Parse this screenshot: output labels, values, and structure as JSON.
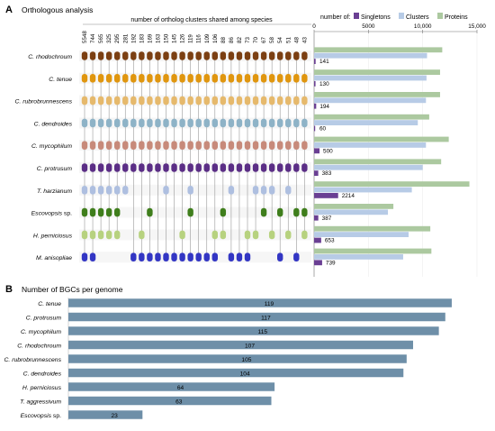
{
  "chart_data": [
    {
      "type": "matrix",
      "panel_label": "A",
      "title": "Orthologous analysis",
      "xlabel": "number of ortholog clusters shared among species",
      "species": [
        {
          "name": "C. rhodochroum",
          "italic": true,
          "color": "#7b3f12"
        },
        {
          "name": "C. tenue",
          "italic": true,
          "color": "#e0960f"
        },
        {
          "name": "C. rubrobrunnescens",
          "italic": true,
          "color": "#e6b96c"
        },
        {
          "name": "C. dendroides",
          "italic": true,
          "color": "#8eb3c7"
        },
        {
          "name": "C. mycophilum",
          "italic": true,
          "color": "#c78a7a"
        },
        {
          "name": "C. protrusum",
          "italic": true,
          "color": "#5b2e86"
        },
        {
          "name": "T. harzianum",
          "italic": true,
          "color": "#aebfe0"
        },
        {
          "name": "Escovopsis",
          "suffix": " sp.",
          "italic": true,
          "color": "#3f7e1c"
        },
        {
          "name": "H. perniciosus",
          "italic": true,
          "color": "#b7d27f"
        },
        {
          "name": "M. anisopliae",
          "italic": true,
          "color": "#3336c4"
        }
      ],
      "columns": [
        {
          "count": "5548",
          "members": [
            0,
            1,
            2,
            3,
            4,
            5,
            6,
            7,
            8,
            9
          ]
        },
        {
          "count": "744",
          "members": [
            0,
            1,
            2,
            3,
            4,
            5,
            6,
            7,
            8,
            9
          ]
        },
        {
          "count": "565",
          "members": [
            0,
            1,
            2,
            3,
            4,
            5,
            6,
            7,
            8
          ]
        },
        {
          "count": "325",
          "members": [
            0,
            1,
            2,
            3,
            4,
            5,
            6,
            7,
            8
          ]
        },
        {
          "count": "295",
          "members": [
            0,
            1,
            2,
            3,
            4,
            5,
            6,
            7,
            8
          ]
        },
        {
          "count": "281",
          "members": [
            0,
            1,
            2,
            3,
            4,
            5,
            6
          ]
        },
        {
          "count": "192",
          "members": [
            0,
            1,
            2,
            3,
            4,
            5,
            9
          ]
        },
        {
          "count": "183",
          "members": [
            0,
            1,
            2,
            3,
            4,
            5,
            8,
            9
          ]
        },
        {
          "count": "169",
          "members": [
            0,
            1,
            2,
            3,
            4,
            5,
            7,
            9
          ]
        },
        {
          "count": "163",
          "members": [
            0,
            1,
            2,
            3,
            4,
            5,
            9
          ]
        },
        {
          "count": "150",
          "members": [
            0,
            1,
            2,
            3,
            4,
            5,
            6,
            9
          ]
        },
        {
          "count": "145",
          "members": [
            0,
            1,
            2,
            3,
            4,
            5,
            9
          ]
        },
        {
          "count": "126",
          "members": [
            0,
            1,
            2,
            3,
            4,
            5,
            8,
            9
          ]
        },
        {
          "count": "119",
          "members": [
            0,
            1,
            2,
            3,
            4,
            5,
            6,
            7,
            9
          ]
        },
        {
          "count": "116",
          "members": [
            0,
            1,
            2,
            3,
            4,
            5,
            9
          ]
        },
        {
          "count": "109",
          "members": [
            0,
            1,
            2,
            3,
            4,
            5,
            9
          ]
        },
        {
          "count": "106",
          "members": [
            0,
            1,
            2,
            3,
            4,
            5,
            8,
            9
          ]
        },
        {
          "count": "88",
          "members": [
            0,
            1,
            2,
            3,
            4,
            5,
            7,
            8
          ]
        },
        {
          "count": "86",
          "members": [
            0,
            1,
            2,
            3,
            4,
            5,
            6,
            9
          ]
        },
        {
          "count": "82",
          "members": [
            0,
            1,
            2,
            3,
            4,
            5,
            9
          ]
        },
        {
          "count": "73",
          "members": [
            0,
            1,
            2,
            3,
            4,
            5,
            8,
            9
          ]
        },
        {
          "count": "70",
          "members": [
            0,
            1,
            2,
            3,
            4,
            5,
            6,
            8
          ]
        },
        {
          "count": "67",
          "members": [
            0,
            1,
            2,
            3,
            4,
            5,
            6,
            7
          ]
        },
        {
          "count": "58",
          "members": [
            0,
            1,
            2,
            3,
            4,
            5,
            6,
            8
          ]
        },
        {
          "count": "54",
          "members": [
            0,
            1,
            2,
            3,
            4,
            5,
            7,
            9
          ]
        },
        {
          "count": "51",
          "members": [
            0,
            1,
            2,
            3,
            4,
            5,
            6,
            8
          ]
        },
        {
          "count": "48",
          "members": [
            0,
            1,
            2,
            3,
            4,
            5,
            7,
            9
          ]
        },
        {
          "count": "43",
          "members": [
            0,
            1,
            2,
            3,
            4,
            5,
            7,
            8
          ]
        }
      ]
    },
    {
      "type": "bar",
      "orientation": "horizontal",
      "legend_label": "number of:",
      "legend_position": "top",
      "xlim": [
        0,
        15000
      ],
      "xticks": [
        0,
        5000,
        10000,
        15000
      ],
      "xtick_labels": [
        "0",
        "5000",
        "10,000",
        "15,000"
      ],
      "categories": [
        "C. rhodochroum",
        "C. tenue",
        "C. rubrobrunnescens",
        "C. dendroides",
        "C. mycophilum",
        "C. protrusum",
        "T. harzianum",
        "Escovopsis sp.",
        "H. perniciosus",
        "M. anisopliae"
      ],
      "series": [
        {
          "name": "Singletons",
          "color": "#6a3f93",
          "values": [
            141,
            130,
            194,
            60,
            500,
            383,
            2214,
            387,
            653,
            739
          ],
          "labels": [
            "141",
            "130",
            "194",
            "60",
            "500",
            "383",
            "2214",
            "387",
            "653",
            "739"
          ]
        },
        {
          "name": "Clusters",
          "color": "#b7cbe6",
          "values": [
            10400,
            10350,
            10300,
            9550,
            10300,
            10000,
            9000,
            6800,
            8700,
            8200
          ]
        },
        {
          "name": "Proteins",
          "color": "#acc9a0",
          "values": [
            11800,
            11600,
            11600,
            10600,
            12400,
            11700,
            14300,
            7300,
            10700,
            10800
          ]
        }
      ]
    },
    {
      "type": "bar",
      "orientation": "horizontal",
      "panel_label": "B",
      "title": "Number of BGCs per genome",
      "xlim": [
        0,
        126
      ],
      "bar_color": "#6e8fa8",
      "categories": [
        {
          "name": "C. tenue",
          "italic": true
        },
        {
          "name": "C. protrusum",
          "italic": true
        },
        {
          "name": "C. mycophilum",
          "italic": true
        },
        {
          "name": "C. rhodochroum",
          "italic": true
        },
        {
          "name": "C. rubrobrunnescens",
          "italic": true
        },
        {
          "name": "C. dendroides",
          "italic": true
        },
        {
          "name": "H. perniciosus",
          "italic": true
        },
        {
          "name": "T. aggressivum",
          "italic": true
        },
        {
          "name": "Escovopsis",
          "suffix": " sp.",
          "italic": true
        }
      ],
      "values": [
        119,
        117,
        115,
        107,
        105,
        104,
        64,
        63,
        23
      ],
      "labels": [
        "119",
        "117",
        "115",
        "107",
        "105",
        "104",
        "64",
        "63",
        "23"
      ]
    }
  ]
}
